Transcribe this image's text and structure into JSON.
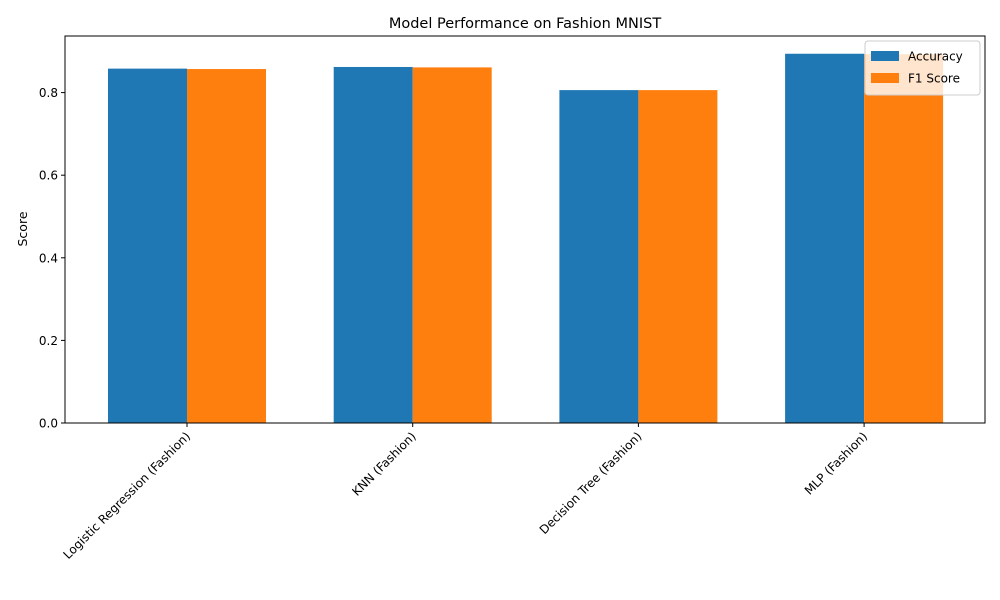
{
  "chart_data": {
    "type": "bar",
    "title": "Model Performance on Fashion MNIST",
    "xlabel": "",
    "ylabel": "Score",
    "categories": [
      "Logistic Regression (Fashion)",
      "KNN (Fashion)",
      "Decision Tree (Fashion)",
      "MLP (Fashion)"
    ],
    "series": [
      {
        "name": "Accuracy",
        "values": [
          0.858,
          0.862,
          0.806,
          0.894
        ],
        "color": "#1f77b4"
      },
      {
        "name": "F1 Score",
        "values": [
          0.857,
          0.861,
          0.806,
          0.893
        ],
        "color": "#ff7f0e"
      }
    ],
    "ylim": [
      0,
      0.937
    ],
    "yticks": [
      0.0,
      0.2,
      0.4,
      0.6,
      0.8
    ],
    "ytick_labels": [
      "0.0",
      "0.2",
      "0.4",
      "0.6",
      "0.8"
    ],
    "grid": false,
    "legend_position": "top-right"
  }
}
